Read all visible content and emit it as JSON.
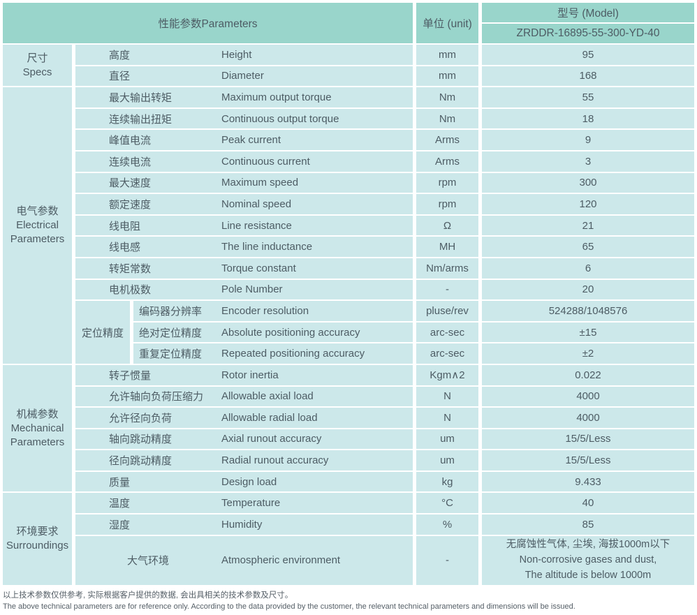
{
  "colors": {
    "header_bg": "#99d5cb",
    "cell_bg": "#cce8ea",
    "text": "#4d5c64",
    "divider": "#ffffff"
  },
  "header": {
    "parameters_label": "性能参数Parameters",
    "unit_label": "单位 (unit)",
    "model_label": "型号 (Model)",
    "model_value": "ZRDDR-16895-55-300-YD-40"
  },
  "sections": [
    {
      "category": "尺寸\nSpecs",
      "rows": [
        {
          "cn": "高度",
          "en": "Height",
          "unit": "mm",
          "value": "95"
        },
        {
          "cn": "直径",
          "en": "Diameter",
          "unit": "mm",
          "value": "168"
        }
      ]
    },
    {
      "category": "电气参数\nElectrical\nParameters",
      "rows": [
        {
          "cn": "最大输出转矩",
          "en": "Maximum output torque",
          "unit": "Nm",
          "value": "55"
        },
        {
          "cn": "连续输出扭矩",
          "en": "Continuous output torque",
          "unit": "Nm",
          "value": "18"
        },
        {
          "cn": "峰值电流",
          "en": "Peak current",
          "unit": "Arms",
          "value": "9"
        },
        {
          "cn": "连续电流",
          "en": "Continuous current",
          "unit": "Arms",
          "value": "3"
        },
        {
          "cn": "最大速度",
          "en": "Maximum speed",
          "unit": "rpm",
          "value": "300"
        },
        {
          "cn": "额定速度",
          "en": "Nominal speed",
          "unit": "rpm",
          "value": "120"
        },
        {
          "cn": "线电阻",
          "en": "Line resistance",
          "unit": "Ω",
          "value": "21"
        },
        {
          "cn": "线电感",
          "en": "The line inductance",
          "unit": "MH",
          "value": "65"
        },
        {
          "cn": "转矩常数",
          "en": "Torque constant",
          "unit": "Nm/arms",
          "value": "6"
        },
        {
          "cn": "电机极数",
          "en": "Pole Number",
          "unit": "-",
          "value": "20"
        }
      ],
      "subgroup": {
        "label": "定位精度",
        "rows": [
          {
            "cn": "编码器分辨率",
            "en": "Encoder resolution",
            "unit": "pluse/rev",
            "value": "524288/1048576"
          },
          {
            "cn": "绝对定位精度",
            "en": "Absolute positioning accuracy",
            "unit": "arc-sec",
            "value": "±15"
          },
          {
            "cn": "重复定位精度",
            "en": "Repeated positioning accuracy",
            "unit": "arc-sec",
            "value": "±2"
          }
        ]
      }
    },
    {
      "category": "机械参数\nMechanical\nParameters",
      "rows": [
        {
          "cn": "转子惯量",
          "en": "Rotor inertia",
          "unit": "Kgm∧2",
          "value": "0.022"
        },
        {
          "cn": "允许轴向负荷压缩力",
          "en": "Allowable axial load",
          "unit": "N",
          "value": "4000"
        },
        {
          "cn": "允许径向负荷",
          "en": "Allowable radial load",
          "unit": "N",
          "value": "4000"
        },
        {
          "cn": "轴向跳动精度",
          "en": "Axial runout accuracy",
          "unit": "um",
          "value": "15/5/Less"
        },
        {
          "cn": "径向跳动精度",
          "en": "Radial runout accuracy",
          "unit": "um",
          "value": "15/5/Less"
        },
        {
          "cn": "质量",
          "en": "Design load",
          "unit": "kg",
          "value": "9.433"
        }
      ]
    },
    {
      "category": "环境要求\nSurroundings",
      "rows": [
        {
          "cn": "温度",
          "en": "Temperature",
          "unit": "°C",
          "value": "40"
        },
        {
          "cn": "湿度",
          "en": "Humidity",
          "unit": "%",
          "value": "85"
        },
        {
          "cn": "大气环境",
          "en": "Atmospheric environment",
          "unit": "-",
          "value": "无腐蚀性气体, 尘埃, 海拔1000m以下\nNon-corrosive gases and dust,\nThe altitude is below 1000m"
        }
      ]
    }
  ],
  "notes": {
    "cn": "以上技术参数仅供参考, 实际根据客户提供的数据, 会出具相关的技术参数及尺寸。",
    "en": "The above technical parameters are for reference only. According to the data provided by the customer, the relevant technical parameters and dimensions will be issued."
  }
}
